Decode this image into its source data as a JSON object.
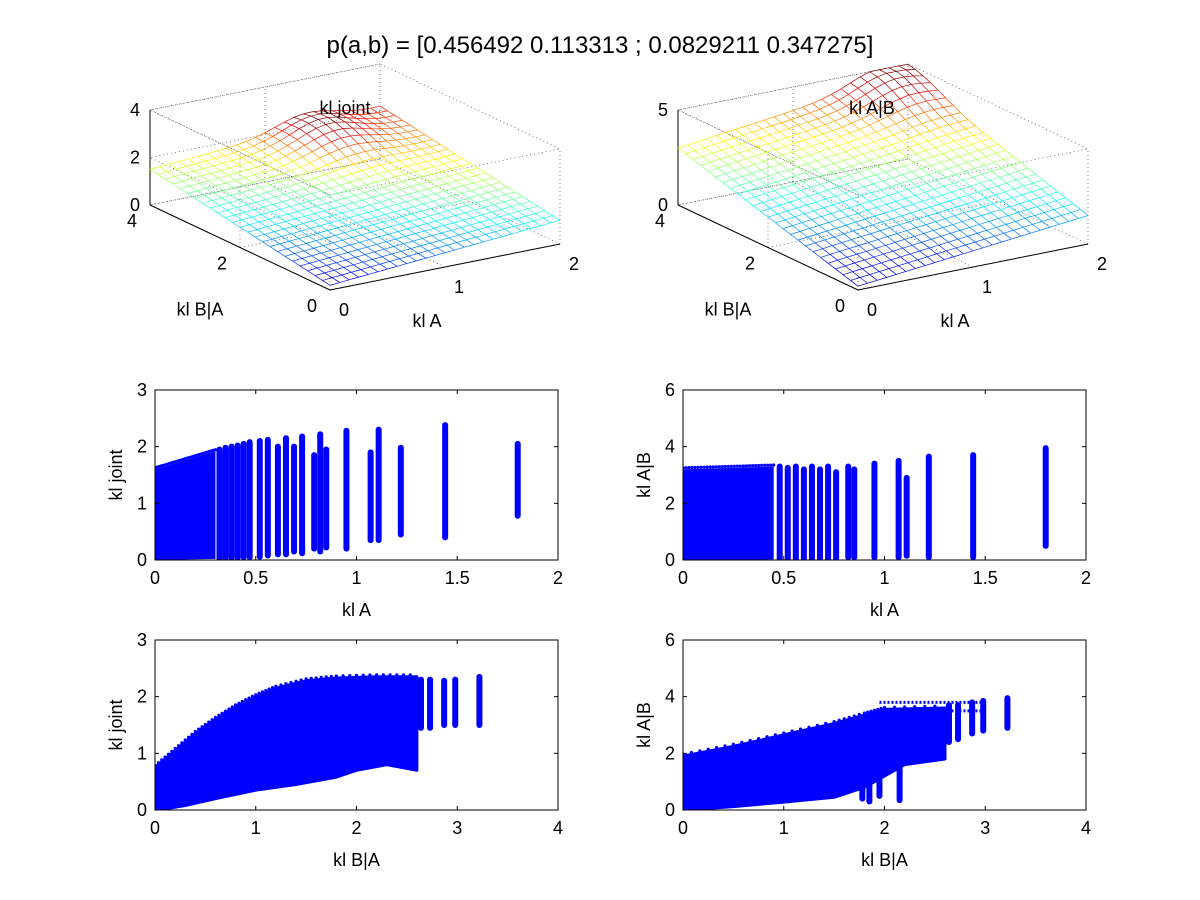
{
  "figure": {
    "suptitle": "p(a,b) = [0.456492 0.113313 ; 0.0829211 0.347275]"
  },
  "chart_data": [
    {
      "id": "surf-joint",
      "type": "surface",
      "title": "kl joint",
      "xlabel": "kl A",
      "ylabel": "kl B|A",
      "zlabel": "",
      "xlim": [
        0,
        2
      ],
      "ylim": [
        0,
        4
      ],
      "zlim": [
        0,
        4
      ],
      "xticks": [
        0,
        1,
        2
      ],
      "yticks": [
        0,
        2,
        4
      ],
      "zticks": [
        0,
        2,
        4
      ],
      "grid": true,
      "colormap": "jet",
      "corner_values": {
        "x0y0": 0.2,
        "x2y0": 1.0,
        "x0y4": 1.5,
        "x2y4": 2.2
      },
      "peak": {
        "x": 1.35,
        "y": 3.6,
        "z": 2.6
      }
    },
    {
      "id": "surf-cond",
      "type": "surface",
      "title": "kl A|B",
      "xlabel": "kl A",
      "ylabel": "kl B|A",
      "zlabel": "",
      "xlim": [
        0,
        2
      ],
      "ylim": [
        0,
        4
      ],
      "zlim": [
        0,
        5
      ],
      "xticks": [
        0,
        1,
        2
      ],
      "yticks": [
        0,
        2,
        4
      ],
      "zticks": [
        0,
        5
      ],
      "grid": true,
      "colormap": "jet",
      "corner_values": {
        "x0y0": 0.2,
        "x2y0": 1.5,
        "x0y4": 3.0,
        "x2y4": 4.5
      },
      "peak": {
        "x": 1.75,
        "y": 3.8,
        "z": 5.0
      }
    },
    {
      "id": "scatter-joint-vs-a",
      "type": "scatter",
      "title": "",
      "xlabel": "kl A",
      "ylabel": "kl joint",
      "xlim": [
        0,
        2
      ],
      "ylim": [
        0,
        3
      ],
      "xticks": [
        0,
        0.5,
        1,
        1.5,
        2
      ],
      "yticks": [
        0,
        1,
        2,
        3
      ],
      "grid": false,
      "marker_color": "#0000ff",
      "columns": [
        {
          "x": 1.8,
          "ymin": 0.78,
          "ymax": 2.05
        },
        {
          "x": 1.44,
          "ymin": 0.4,
          "ymax": 2.38
        },
        {
          "x": 1.22,
          "ymin": 0.45,
          "ymax": 1.98
        },
        {
          "x": 1.11,
          "ymin": 0.35,
          "ymax": 2.3
        },
        {
          "x": 1.07,
          "ymin": 0.35,
          "ymax": 1.9
        },
        {
          "x": 0.95,
          "ymin": 0.2,
          "ymax": 2.28
        },
        {
          "x": 0.85,
          "ymin": 0.22,
          "ymax": 1.95
        },
        {
          "x": 0.82,
          "ymin": 0.15,
          "ymax": 2.22
        },
        {
          "x": 0.79,
          "ymin": 0.2,
          "ymax": 1.85
        },
        {
          "x": 0.73,
          "ymin": 0.12,
          "ymax": 2.18
        },
        {
          "x": 0.69,
          "ymin": 0.15,
          "ymax": 2.0
        },
        {
          "x": 0.65,
          "ymin": 0.1,
          "ymax": 2.15
        },
        {
          "x": 0.61,
          "ymin": 0.1,
          "ymax": 2.0
        },
        {
          "x": 0.56,
          "ymin": 0.08,
          "ymax": 2.12
        },
        {
          "x": 0.52,
          "ymin": 0.06,
          "ymax": 2.1
        },
        {
          "x": 0.47,
          "ymin": 0.05,
          "ymax": 2.08
        },
        {
          "x": 0.44,
          "ymin": 0.05,
          "ymax": 2.05
        },
        {
          "x": 0.41,
          "ymin": 0.04,
          "ymax": 2.02
        },
        {
          "x": 0.38,
          "ymin": 0.04,
          "ymax": 2.0
        },
        {
          "x": 0.35,
          "ymin": 0.03,
          "ymax": 1.98
        },
        {
          "x": 0.32,
          "ymin": 0.03,
          "ymax": 1.95
        }
      ],
      "dense_region": {
        "xmin": 0,
        "xmax": 0.3,
        "ymin_at_xmax": 0.02,
        "ymax_at_x0": 1.6,
        "ymax_at_xmax": 1.92
      }
    },
    {
      "id": "scatter-cond-vs-a",
      "type": "scatter",
      "title": "",
      "xlabel": "kl A",
      "ylabel": "kl A|B",
      "xlim": [
        0,
        2
      ],
      "ylim": [
        0,
        6
      ],
      "xticks": [
        0,
        0.5,
        1,
        1.5,
        2
      ],
      "yticks": [
        0,
        2,
        4,
        6
      ],
      "grid": false,
      "marker_color": "#0000ff",
      "columns": [
        {
          "x": 1.8,
          "ymin": 0.5,
          "ymax": 3.95
        },
        {
          "x": 1.44,
          "ymin": 0.1,
          "ymax": 3.7
        },
        {
          "x": 1.22,
          "ymin": 0.1,
          "ymax": 3.65
        },
        {
          "x": 1.11,
          "ymin": 0.15,
          "ymax": 2.9
        },
        {
          "x": 1.07,
          "ymin": 0.1,
          "ymax": 3.5
        },
        {
          "x": 0.95,
          "ymin": 0.1,
          "ymax": 3.4
        },
        {
          "x": 0.85,
          "ymin": 0.1,
          "ymax": 3.2
        },
        {
          "x": 0.82,
          "ymin": 0.1,
          "ymax": 3.3
        },
        {
          "x": 0.76,
          "ymin": 0.05,
          "ymax": 3.1
        },
        {
          "x": 0.72,
          "ymin": 0.05,
          "ymax": 3.3
        },
        {
          "x": 0.68,
          "ymin": 0.05,
          "ymax": 3.2
        },
        {
          "x": 0.64,
          "ymin": 0.05,
          "ymax": 3.3
        },
        {
          "x": 0.6,
          "ymin": 0.05,
          "ymax": 3.2
        },
        {
          "x": 0.56,
          "ymin": 0.03,
          "ymax": 3.3
        },
        {
          "x": 0.52,
          "ymin": 0.03,
          "ymax": 3.25
        },
        {
          "x": 0.48,
          "ymin": 0.03,
          "ymax": 3.3
        }
      ],
      "dense_region": {
        "xmin": 0,
        "xmax": 0.45,
        "ymin_at_xmax": 0.02,
        "ymax_at_x0": 3.2,
        "ymax_at_xmax": 3.3
      }
    },
    {
      "id": "scatter-joint-vs-ba",
      "type": "scatter",
      "title": "",
      "xlabel": "kl B|A",
      "ylabel": "kl joint",
      "xlim": [
        0,
        4
      ],
      "ylim": [
        0,
        3
      ],
      "xticks": [
        0,
        1,
        2,
        3,
        4
      ],
      "yticks": [
        0,
        1,
        2,
        3
      ],
      "grid": false,
      "marker_color": "#0000ff",
      "envelope_upper": [
        [
          0,
          0.75
        ],
        [
          0.2,
          1.05
        ],
        [
          0.4,
          1.35
        ],
        [
          0.6,
          1.6
        ],
        [
          0.8,
          1.82
        ],
        [
          1.0,
          2.0
        ],
        [
          1.2,
          2.15
        ],
        [
          1.5,
          2.28
        ],
        [
          1.8,
          2.33
        ],
        [
          2.2,
          2.35
        ],
        [
          2.6,
          2.35
        ]
      ],
      "envelope_lower": [
        [
          2.6,
          0.7
        ],
        [
          2.3,
          0.8
        ],
        [
          2.0,
          0.7
        ],
        [
          1.8,
          0.58
        ],
        [
          1.4,
          0.45
        ],
        [
          1.0,
          0.35
        ],
        [
          0.6,
          0.2
        ],
        [
          0.3,
          0.08
        ],
        [
          0.1,
          0.02
        ],
        [
          0,
          0.02
        ]
      ],
      "columns": [
        {
          "x": 3.22,
          "ymin": 1.5,
          "ymax": 2.35
        },
        {
          "x": 2.98,
          "ymin": 1.5,
          "ymax": 2.3
        },
        {
          "x": 2.87,
          "ymin": 1.5,
          "ymax": 2.28
        },
        {
          "x": 2.73,
          "ymin": 1.45,
          "ymax": 2.3
        },
        {
          "x": 2.64,
          "ymin": 1.45,
          "ymax": 2.3
        }
      ]
    },
    {
      "id": "scatter-cond-vs-ba",
      "type": "scatter",
      "title": "",
      "xlabel": "kl B|A",
      "ylabel": "kl A|B",
      "xlim": [
        0,
        4
      ],
      "ylim": [
        0,
        6
      ],
      "xticks": [
        0,
        1,
        2,
        3,
        4
      ],
      "yticks": [
        0,
        2,
        4,
        6
      ],
      "grid": false,
      "marker_color": "#0000ff",
      "envelope_upper": [
        [
          0,
          1.9
        ],
        [
          0.5,
          2.25
        ],
        [
          1.0,
          2.65
        ],
        [
          1.5,
          3.05
        ],
        [
          1.8,
          3.35
        ],
        [
          2.0,
          3.55
        ],
        [
          2.6,
          3.6
        ]
      ],
      "envelope_lower": [
        [
          2.6,
          1.8
        ],
        [
          2.2,
          1.6
        ],
        [
          1.8,
          0.8
        ],
        [
          1.5,
          0.45
        ],
        [
          1.0,
          0.28
        ],
        [
          0.5,
          0.12
        ],
        [
          0.1,
          0.02
        ],
        [
          0,
          0.02
        ]
      ],
      "columns": [
        {
          "x": 3.22,
          "ymin": 2.9,
          "ymax": 3.95
        },
        {
          "x": 2.98,
          "ymin": 2.8,
          "ymax": 3.85
        },
        {
          "x": 2.87,
          "ymin": 2.7,
          "ymax": 3.8
        },
        {
          "x": 2.73,
          "ymin": 2.5,
          "ymax": 3.7
        },
        {
          "x": 2.64,
          "ymin": 2.4,
          "ymax": 3.7
        },
        {
          "x": 2.15,
          "ymin": 0.35,
          "ymax": 1.5
        },
        {
          "x": 1.95,
          "ymin": 0.5,
          "ymax": 1.8
        },
        {
          "x": 1.85,
          "ymin": 0.3,
          "ymax": 1.5
        },
        {
          "x": 1.78,
          "ymin": 0.4,
          "ymax": 1.8
        }
      ],
      "band": {
        "x0": 1.95,
        "x1": 3.0,
        "y": 3.8
      }
    }
  ]
}
